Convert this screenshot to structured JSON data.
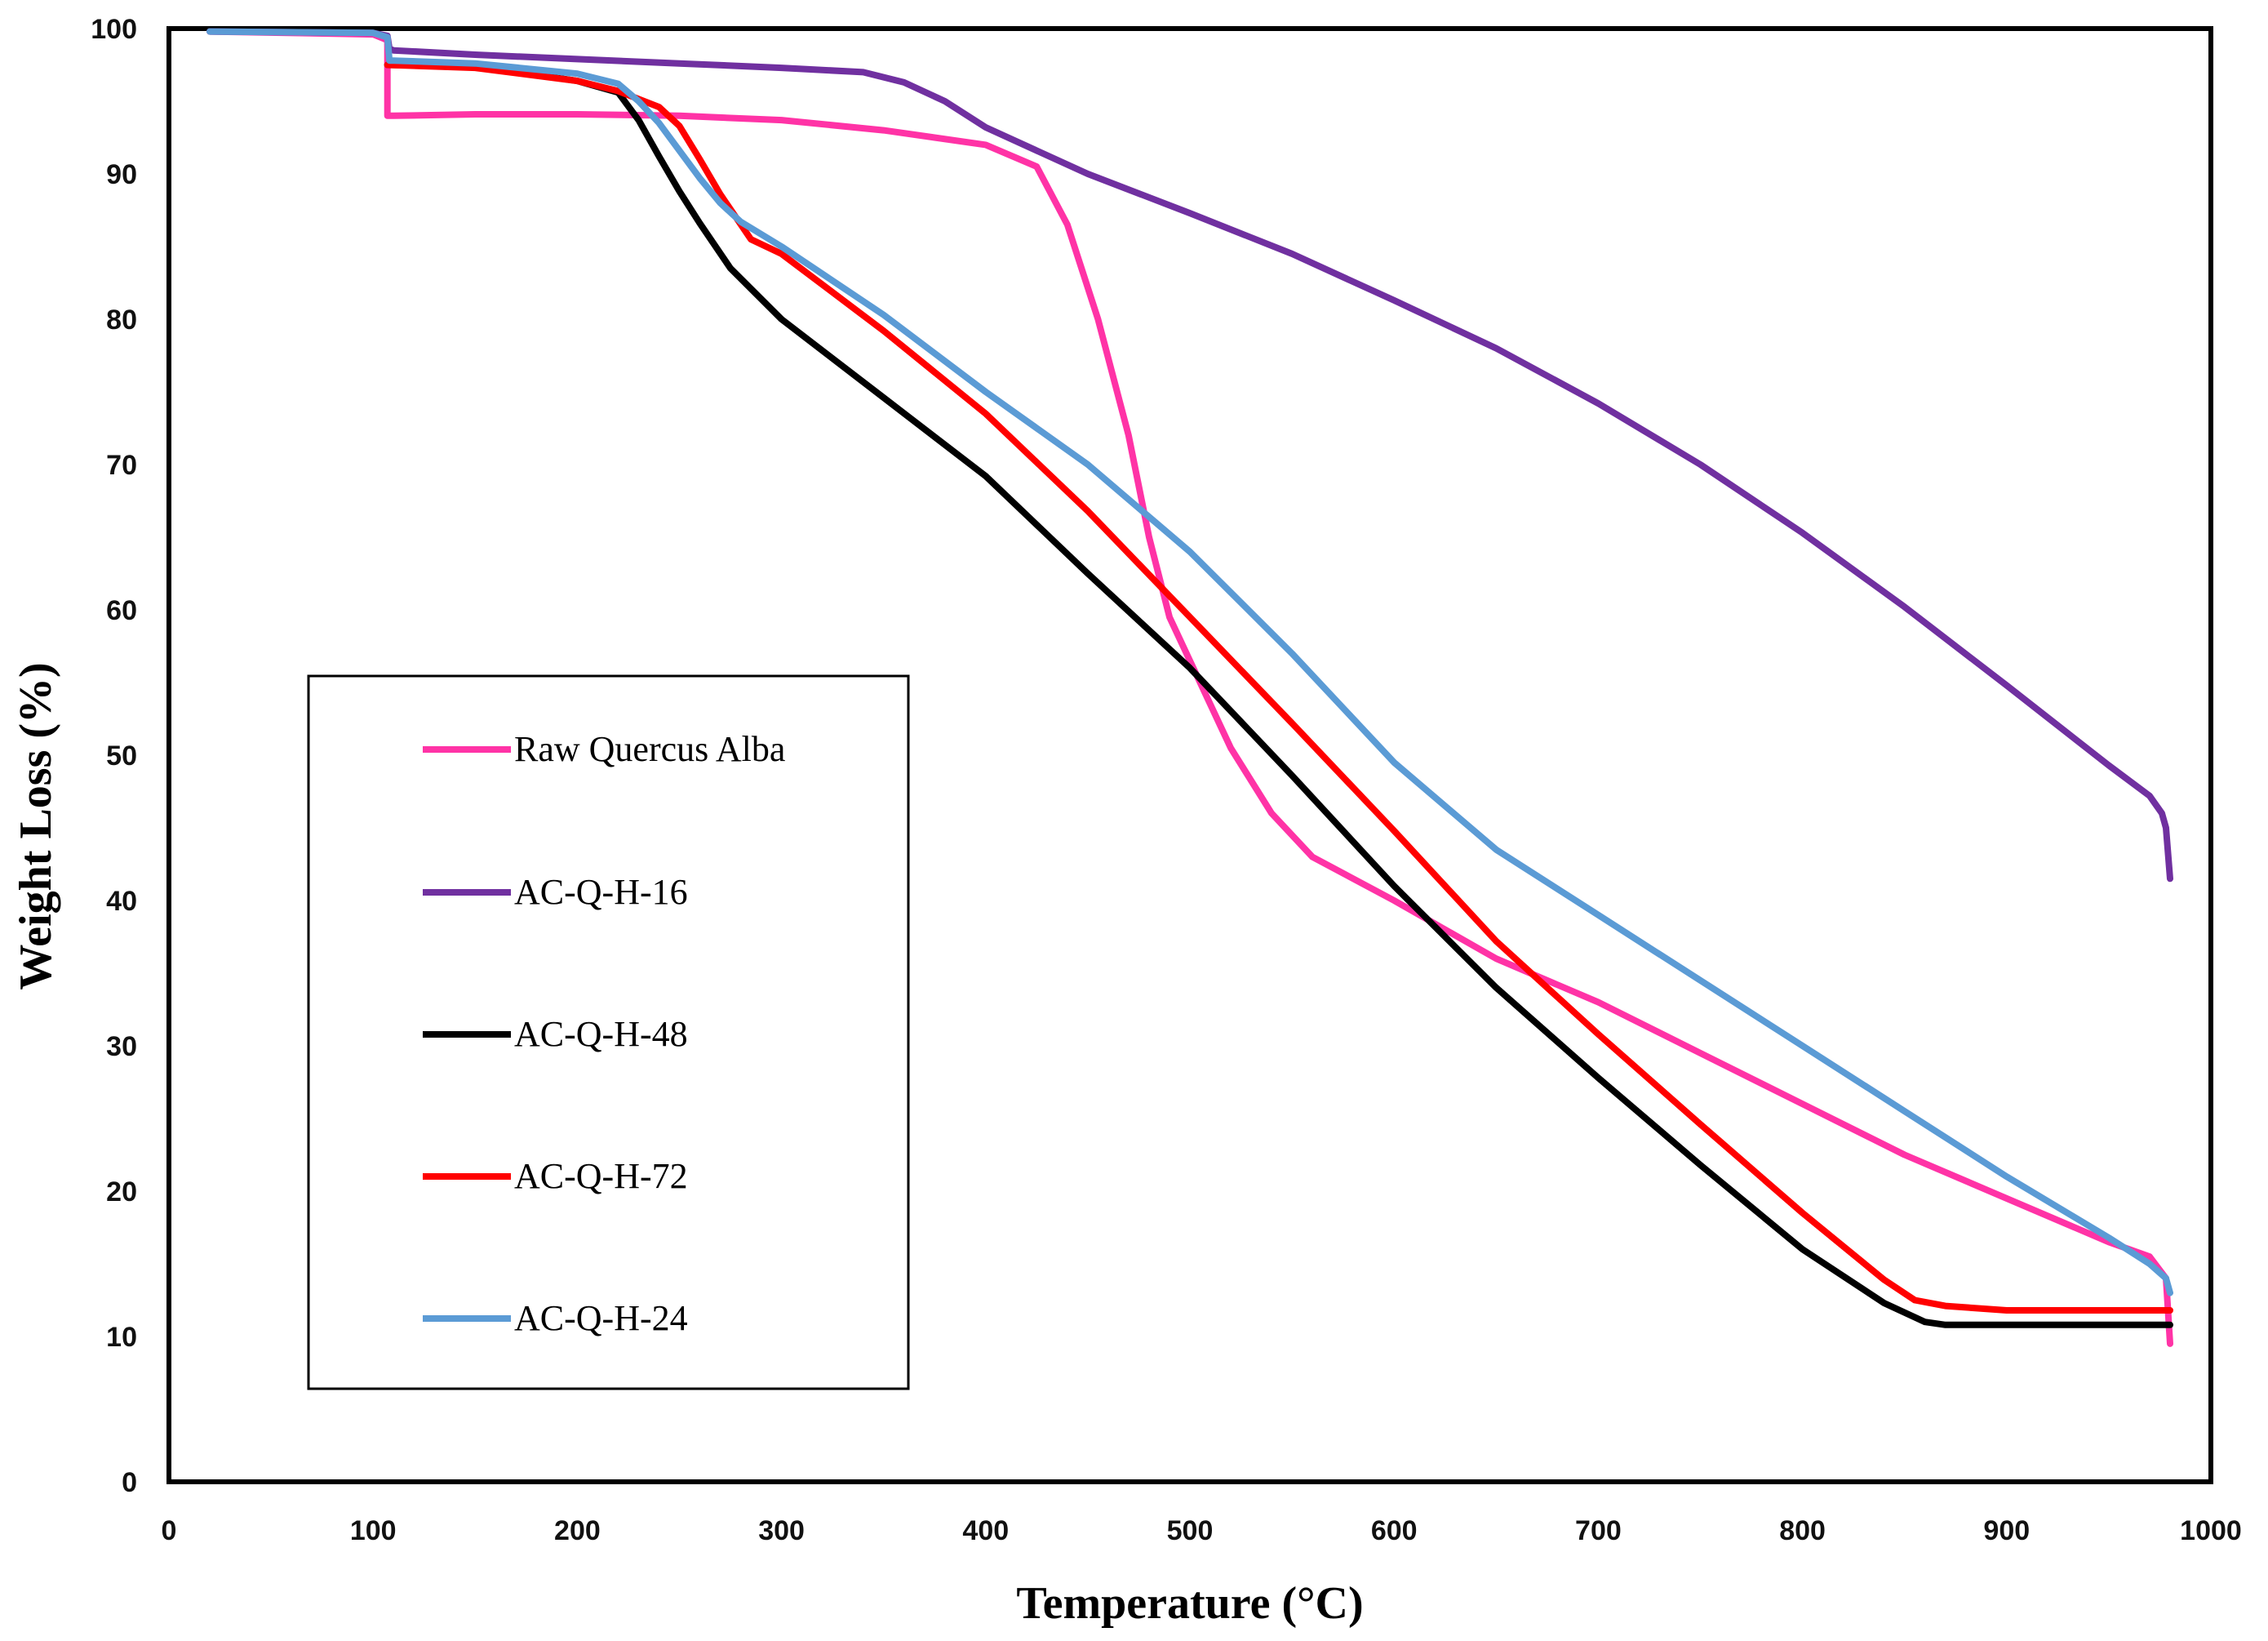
{
  "chart_data": {
    "type": "line",
    "title": "",
    "xlabel": "Temperature (°C)",
    "ylabel": "Weight Loss (%)",
    "xlim": [
      0,
      1000
    ],
    "ylim": [
      0,
      100
    ],
    "xticks": [
      0,
      100,
      200,
      300,
      400,
      500,
      600,
      700,
      800,
      900,
      1000
    ],
    "yticks": [
      0,
      10,
      20,
      30,
      40,
      50,
      60,
      70,
      80,
      90,
      100
    ],
    "grid": false,
    "legend_position": "center-left",
    "series": [
      {
        "name": "Raw Quercus Alba",
        "color": "#ff33a6",
        "x": [
          20,
          100,
          107,
          107,
          110,
          150,
          200,
          250,
          300,
          350,
          400,
          425,
          440,
          455,
          470,
          480,
          490,
          500,
          510,
          520,
          540,
          560,
          600,
          650,
          700,
          750,
          800,
          850,
          900,
          950,
          970,
          978,
          980
        ],
        "y": [
          99.8,
          99.6,
          99.2,
          94.0,
          94.0,
          94.1,
          94.1,
          94.0,
          93.7,
          93.0,
          92.0,
          90.5,
          86.5,
          80.0,
          72.0,
          65.0,
          59.5,
          56.5,
          53.5,
          50.5,
          46.0,
          43.0,
          40.0,
          36.0,
          33.0,
          29.5,
          26.0,
          22.5,
          19.5,
          16.5,
          15.5,
          14.0,
          9.5
        ]
      },
      {
        "name": "AC-Q-H-16",
        "color": "#7030a0",
        "x": [
          20,
          100,
          107,
          108,
          110,
          150,
          200,
          250,
          300,
          340,
          360,
          380,
          400,
          450,
          500,
          550,
          600,
          650,
          700,
          750,
          800,
          850,
          900,
          950,
          970,
          976,
          978,
          980
        ],
        "y": [
          99.8,
          99.7,
          99.5,
          98.6,
          98.5,
          98.2,
          97.9,
          97.6,
          97.3,
          97.0,
          96.3,
          95.0,
          93.2,
          90.0,
          87.3,
          84.5,
          81.3,
          78.0,
          74.2,
          70.0,
          65.3,
          60.2,
          54.8,
          49.3,
          47.2,
          46.0,
          45.0,
          41.5
        ]
      },
      {
        "name": "AC-Q-H-48",
        "color": "#000000",
        "x": [
          107,
          150,
          200,
          220,
          230,
          240,
          250,
          260,
          275,
          300,
          350,
          400,
          450,
          500,
          550,
          600,
          650,
          700,
          750,
          800,
          840,
          860,
          870,
          900,
          950,
          980
        ],
        "y": [
          97.5,
          97.4,
          96.4,
          95.6,
          93.7,
          91.2,
          88.8,
          86.6,
          83.5,
          80.0,
          74.6,
          69.2,
          62.5,
          56.0,
          48.6,
          41.0,
          34.0,
          27.8,
          21.8,
          16.0,
          12.3,
          11.0,
          10.8,
          10.8,
          10.8,
          10.8
        ]
      },
      {
        "name": "AC-Q-H-72",
        "color": "#ff0000",
        "x": [
          107,
          150,
          200,
          220,
          240,
          250,
          260,
          270,
          285,
          300,
          350,
          400,
          450,
          500,
          550,
          600,
          650,
          700,
          750,
          800,
          840,
          855,
          870,
          900,
          950,
          980
        ],
        "y": [
          97.5,
          97.3,
          96.4,
          95.7,
          94.6,
          93.3,
          91.0,
          88.6,
          85.5,
          84.5,
          79.2,
          73.5,
          66.8,
          59.5,
          52.2,
          44.8,
          37.2,
          30.8,
          24.6,
          18.5,
          13.9,
          12.5,
          12.1,
          11.8,
          11.8,
          11.8
        ]
      },
      {
        "name": "AC-Q-H-24",
        "color": "#5b9bd5",
        "x": [
          20,
          100,
          107,
          108,
          110,
          150,
          200,
          220,
          230,
          240,
          250,
          260,
          270,
          280,
          300,
          350,
          400,
          450,
          500,
          550,
          600,
          650,
          700,
          750,
          800,
          850,
          900,
          950,
          970,
          978,
          980
        ],
        "y": [
          99.8,
          99.7,
          99.4,
          97.8,
          97.8,
          97.6,
          96.9,
          96.2,
          95.0,
          93.5,
          91.6,
          89.7,
          88.0,
          86.7,
          85.0,
          80.3,
          75.0,
          70.0,
          64.0,
          57.0,
          49.5,
          43.5,
          39.0,
          34.5,
          30.0,
          25.5,
          21.0,
          16.8,
          15.0,
          14.0,
          13.0
        ]
      }
    ]
  }
}
